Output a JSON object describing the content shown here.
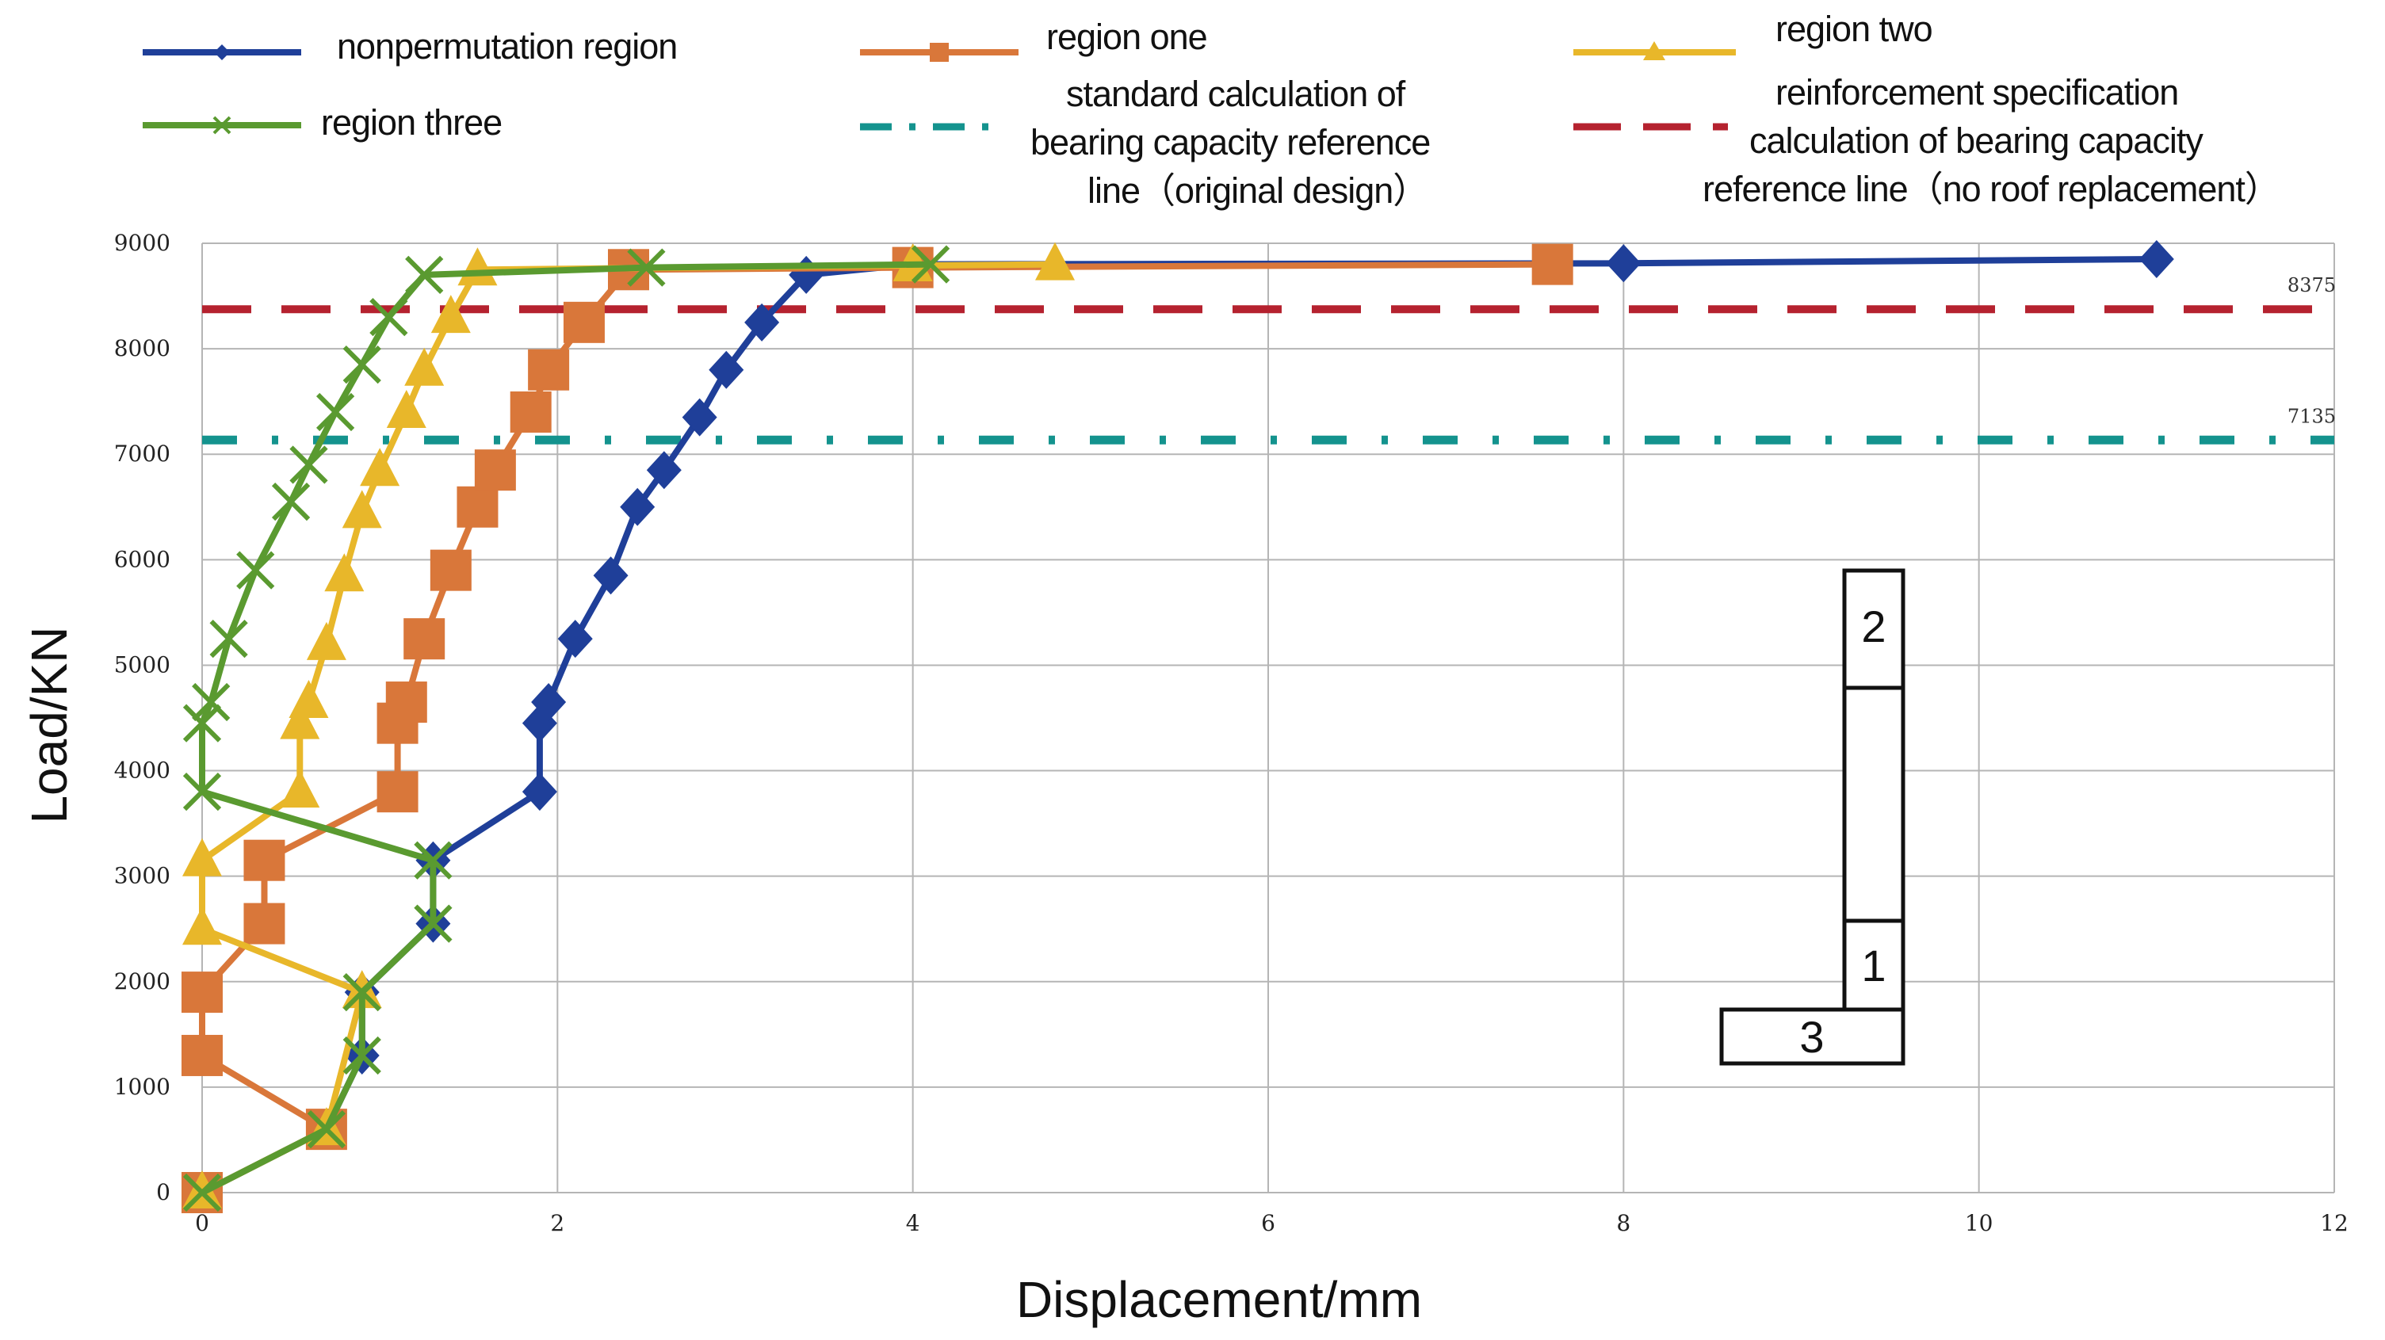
{
  "chart_data": {
    "type": "line",
    "title": "",
    "xlabel": "Displacement/mm",
    "ylabel": "Load/KN",
    "xlim": [
      0,
      12
    ],
    "ylim": [
      0,
      9000
    ],
    "xticks": [
      0,
      2,
      4,
      6,
      8,
      10,
      12
    ],
    "yticks": [
      0,
      1000,
      2000,
      3000,
      4000,
      5000,
      6000,
      7000,
      8000,
      9000
    ],
    "grid": true,
    "series": [
      {
        "name": "nonpermutation region",
        "color": "#1f3f99",
        "marker": "diamond",
        "points": [
          [
            0,
            0
          ],
          [
            0.7,
            600
          ],
          [
            0.9,
            1300
          ],
          [
            0.9,
            1900
          ],
          [
            1.3,
            2550
          ],
          [
            1.3,
            3150
          ],
          [
            1.9,
            3800
          ],
          [
            1.9,
            4450
          ],
          [
            1.95,
            4650
          ],
          [
            2.1,
            5250
          ],
          [
            2.3,
            5850
          ],
          [
            2.45,
            6500
          ],
          [
            2.6,
            6850
          ],
          [
            2.8,
            7350
          ],
          [
            2.95,
            7800
          ],
          [
            3.15,
            8250
          ],
          [
            3.4,
            8700
          ],
          [
            4,
            8800
          ],
          [
            8,
            8810
          ],
          [
            11,
            8850
          ]
        ]
      },
      {
        "name": "region one",
        "color": "#d9773a",
        "marker": "square",
        "points": [
          [
            0,
            0
          ],
          [
            0.7,
            600
          ],
          [
            0,
            1300
          ],
          [
            0,
            1900
          ],
          [
            0.35,
            2550
          ],
          [
            0.35,
            3150
          ],
          [
            1.1,
            3800
          ],
          [
            1.1,
            4450
          ],
          [
            1.15,
            4650
          ],
          [
            1.25,
            5250
          ],
          [
            1.4,
            5900
          ],
          [
            1.55,
            6500
          ],
          [
            1.65,
            6850
          ],
          [
            1.85,
            7400
          ],
          [
            1.95,
            7800
          ],
          [
            2.15,
            8250
          ],
          [
            2.4,
            8750
          ],
          [
            4,
            8770
          ],
          [
            7.6,
            8800
          ]
        ]
      },
      {
        "name": "region two",
        "color": "#e8b72a",
        "marker": "triangle",
        "points": [
          [
            0,
            0
          ],
          [
            0.7,
            600
          ],
          [
            0.9,
            1900
          ],
          [
            0,
            2500
          ],
          [
            0,
            3150
          ],
          [
            0.55,
            3800
          ],
          [
            0.55,
            4450
          ],
          [
            0.6,
            4650
          ],
          [
            0.7,
            5200
          ],
          [
            0.8,
            5850
          ],
          [
            0.9,
            6450
          ],
          [
            1.0,
            6850
          ],
          [
            1.15,
            7400
          ],
          [
            1.25,
            7800
          ],
          [
            1.4,
            8300
          ],
          [
            1.55,
            8750
          ],
          [
            4,
            8790
          ],
          [
            4.8,
            8800
          ]
        ]
      },
      {
        "name": "region three",
        "color": "#5a9a30",
        "marker": "x",
        "points": [
          [
            0,
            0
          ],
          [
            0.7,
            600
          ],
          [
            0.9,
            1300
          ],
          [
            0.9,
            1900
          ],
          [
            1.3,
            2550
          ],
          [
            1.3,
            3150
          ],
          [
            0,
            3800
          ],
          [
            0,
            4450
          ],
          [
            0.05,
            4650
          ],
          [
            0.15,
            5250
          ],
          [
            0.3,
            5900
          ],
          [
            0.5,
            6550
          ],
          [
            0.6,
            6900
          ],
          [
            0.75,
            7400
          ],
          [
            0.9,
            7850
          ],
          [
            1.05,
            8300
          ],
          [
            1.25,
            8700
          ],
          [
            2.5,
            8770
          ],
          [
            4.1,
            8800
          ]
        ]
      }
    ],
    "reference_lines": [
      {
        "name": "standard calculation of bearing capacity reference line（original design）",
        "value": 7135,
        "label": "7135",
        "color": "#14938e",
        "style": "dash-dot"
      },
      {
        "name": "reinforcement specification calculation of bearing capacity reference line（no roof replacement）",
        "value": 8375,
        "label": "8375",
        "color": "#b5222f",
        "style": "dashed"
      }
    ]
  },
  "legend": {
    "nonpermutation": "nonpermutation region",
    "region_one": "region one",
    "region_two": "region two",
    "region_three": "region three",
    "standard_line1": "standard calculation of",
    "standard_line2": "bearing capacity reference",
    "standard_line3": "line（original design）",
    "reinforce_line1": "reinforcement specification",
    "reinforce_line2": "calculation of bearing capacity",
    "reinforce_line3": "reference line（no roof replacement）"
  },
  "inset": {
    "label_1": "1",
    "label_2": "2",
    "label_3": "3"
  }
}
